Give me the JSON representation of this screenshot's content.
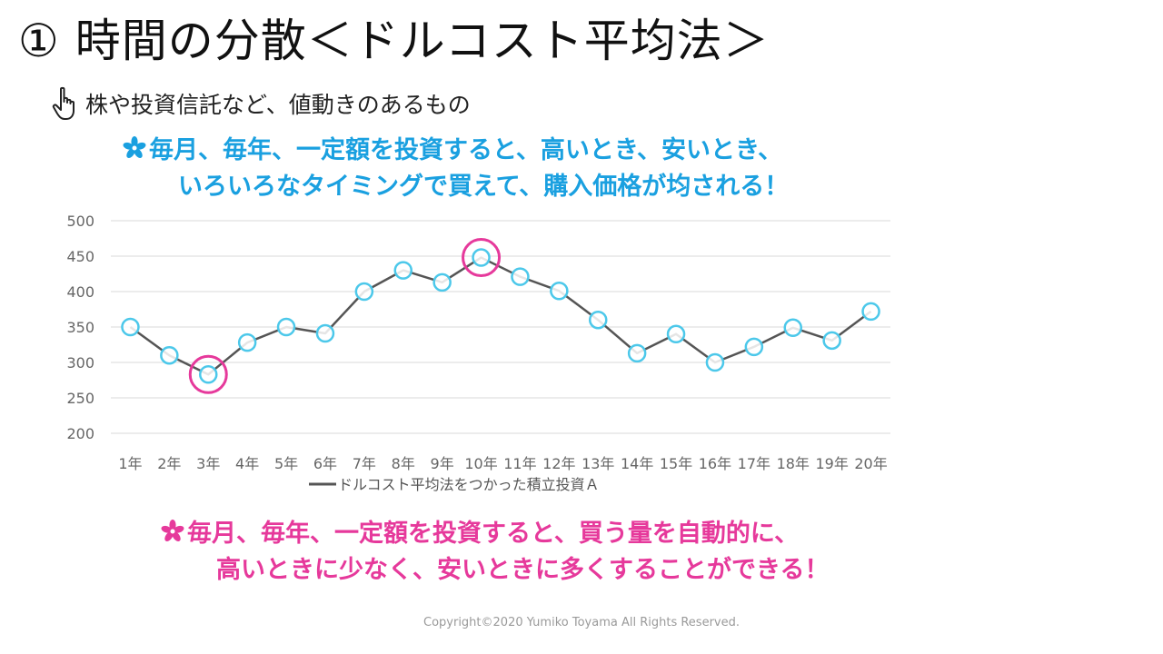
{
  "slide": {
    "title": "① 時間の分散＜ドルコスト平均法＞",
    "subtitle": "株や投資信託など、値動きのあるもの",
    "pointer_icon": "pointing-hand-icon",
    "note_top": {
      "line1": "毎月、毎年、一定額を投資すると、高いとき、安いとき、",
      "line2": "いろいろなタイミングで買えて、購入価格が均される！",
      "color": "#1aa0e0",
      "icon": "flower-icon"
    },
    "note_bottom": {
      "line1": "毎月、毎年、一定額を投資すると、買う量を自動的に、",
      "line2": "高いときに少なく、安いときに多くすることができる！",
      "color": "#e6399b",
      "icon": "flower-icon"
    },
    "copyright": "Copyright©2020 Yumiko Toyama All Rights Reserved."
  },
  "chart_data": {
    "type": "line",
    "categories": [
      "1年",
      "2年",
      "3年",
      "4年",
      "5年",
      "6年",
      "7年",
      "8年",
      "9年",
      "10年",
      "11年",
      "12年",
      "13年",
      "14年",
      "15年",
      "16年",
      "17年",
      "18年",
      "19年",
      "20年"
    ],
    "series": [
      {
        "name": "ドルコスト平均法をつかった積立投資Ａ",
        "values": [
          350,
          310,
          283,
          328,
          350,
          341,
          400,
          430,
          413,
          448,
          421,
          401,
          360,
          313,
          340,
          300,
          322,
          349,
          331,
          372
        ],
        "line_color": "#555555",
        "marker_color": "#4cc8ea"
      }
    ],
    "highlighted_categories": [
      "3年",
      "10年"
    ],
    "highlight_color": "#e6399b",
    "ylim": [
      200,
      500
    ],
    "yticks": [
      200,
      250,
      300,
      350,
      400,
      450,
      500
    ],
    "grid": true,
    "legend": "bottom",
    "xlabel": "",
    "ylabel": ""
  }
}
